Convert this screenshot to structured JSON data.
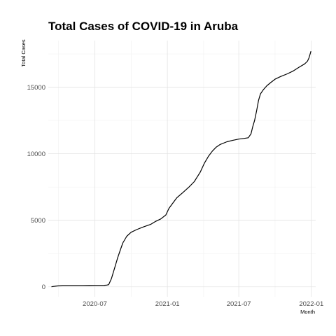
{
  "chart_data": {
    "type": "line",
    "title": "Total Cases of COVID-19 in Aruba",
    "xlabel": "Month",
    "ylabel": "Total Cases",
    "x_tick_labels": [
      "2020-07",
      "2021-01",
      "2021-07",
      "2022-01"
    ],
    "y_tick_labels": [
      "0",
      "5000",
      "10000",
      "15000"
    ],
    "y_ticks": [
      0,
      5000,
      10000,
      15000
    ],
    "x_ticks": [
      "2020-07-01",
      "2021-01-01",
      "2021-07-01",
      "2022-01-01"
    ],
    "xlim": [
      "2020-03-05",
      "2022-01-12"
    ],
    "ylim": [
      -750,
      18500
    ],
    "grid": true,
    "legend": "none",
    "series": [
      {
        "x": [
          "2020-03-13",
          "2020-03-25",
          "2020-04-10",
          "2020-05-01",
          "2020-06-01",
          "2020-07-01",
          "2020-07-25",
          "2020-07-31",
          "2020-08-05",
          "2020-08-12",
          "2020-08-20",
          "2020-08-28",
          "2020-09-04",
          "2020-09-10",
          "2020-09-20",
          "2020-10-01",
          "2020-10-15",
          "2020-11-01",
          "2020-11-20",
          "2020-12-01",
          "2020-12-15",
          "2020-12-28",
          "2021-01-05",
          "2021-01-15",
          "2021-01-25",
          "2021-02-10",
          "2021-02-25",
          "2021-03-10",
          "2021-03-25",
          "2021-04-05",
          "2021-04-15",
          "2021-04-25",
          "2021-05-05",
          "2021-05-15",
          "2021-06-01",
          "2021-06-15",
          "2021-07-01",
          "2021-07-15",
          "2021-07-25",
          "2021-08-01",
          "2021-08-05",
          "2021-08-10",
          "2021-08-15",
          "2021-08-20",
          "2021-08-25",
          "2021-09-01",
          "2021-09-10",
          "2021-09-20",
          "2021-10-01",
          "2021-10-15",
          "2021-11-01",
          "2021-11-15",
          "2021-12-01",
          "2021-12-15",
          "2021-12-22",
          "2021-12-26",
          "2021-12-29",
          "2021-12-31"
        ],
        "y": [
          0,
          60,
          100,
          102,
          103,
          105,
          110,
          130,
          160,
          600,
          1400,
          2200,
          2800,
          3300,
          3800,
          4100,
          4300,
          4500,
          4700,
          4900,
          5100,
          5400,
          5900,
          6300,
          6700,
          7100,
          7500,
          7900,
          8600,
          9300,
          9800,
          10200,
          10500,
          10700,
          10900,
          11000,
          11100,
          11150,
          11200,
          11500,
          12000,
          12500,
          13200,
          14000,
          14500,
          14800,
          15100,
          15350,
          15600,
          15800,
          16000,
          16200,
          16500,
          16750,
          16950,
          17200,
          17500,
          17700
        ]
      }
    ]
  }
}
